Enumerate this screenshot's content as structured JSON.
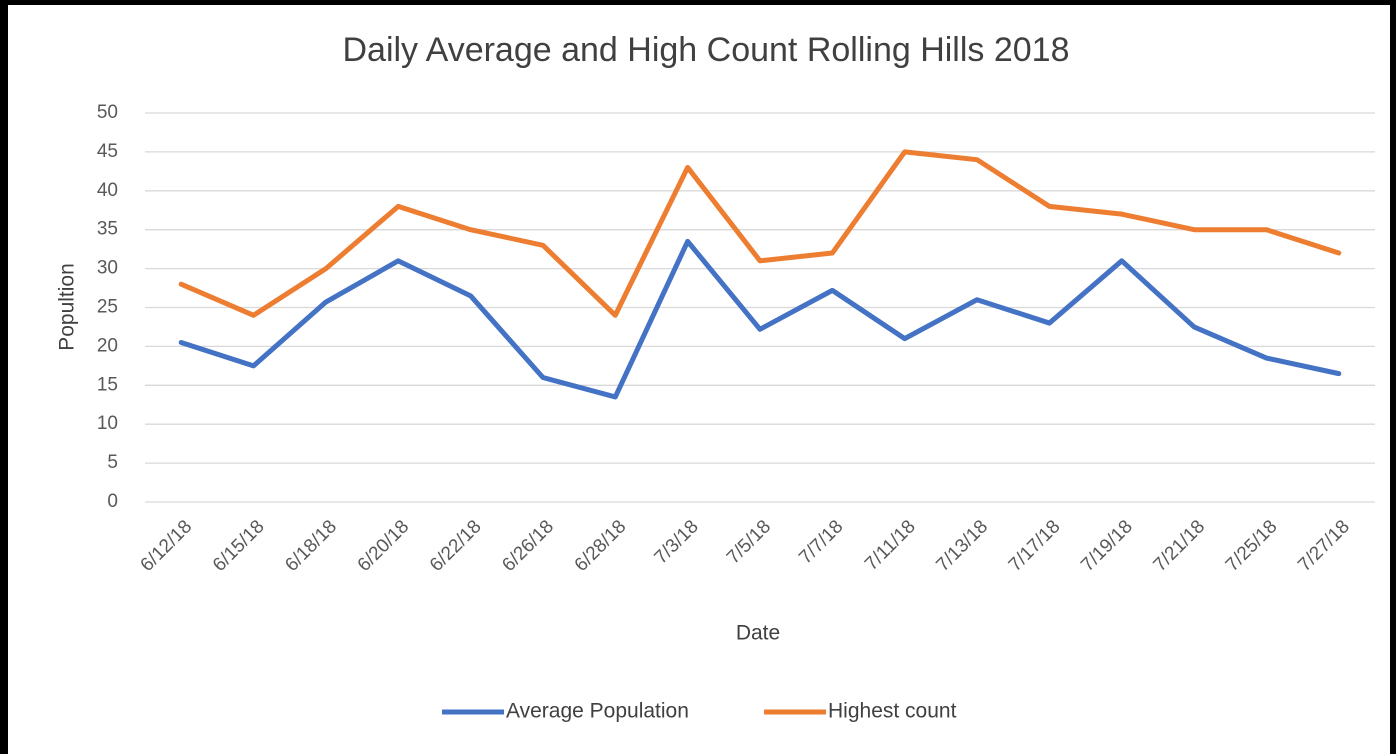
{
  "chart_data": {
    "type": "line",
    "title": "Daily Average and High Count Rolling Hills 2018",
    "x_label": "Date",
    "y_label": "Popultion",
    "categories": [
      "6/12/18",
      "6/15/18",
      "6/18/18",
      "6/20/18",
      "6/22/18",
      "6/26/18",
      "6/28/18",
      "7/3/18",
      "7/5/18",
      "7/7/18",
      "7/11/18",
      "7/13/18",
      "7/17/18",
      "7/19/18",
      "7/21/18",
      "7/25/18",
      "7/27/18"
    ],
    "series": [
      {
        "name": "Average Population",
        "color": "#4472c4",
        "values": [
          20.5,
          17.5,
          25.7,
          31,
          26.5,
          16,
          13.5,
          33.5,
          22.2,
          27.2,
          21,
          26,
          23,
          31,
          22.5,
          18.5,
          16.5
        ]
      },
      {
        "name": "Highest count",
        "color": "#ed7d31",
        "values": [
          28,
          24,
          30,
          38,
          35,
          33,
          24,
          43,
          31,
          32,
          45,
          44,
          38,
          37,
          35,
          35,
          32
        ]
      }
    ],
    "ylim": [
      0,
      50
    ],
    "yticks": [
      0,
      5,
      10,
      15,
      20,
      25,
      30,
      35,
      40,
      45,
      50
    ],
    "grid": true,
    "legend": "bottom"
  }
}
